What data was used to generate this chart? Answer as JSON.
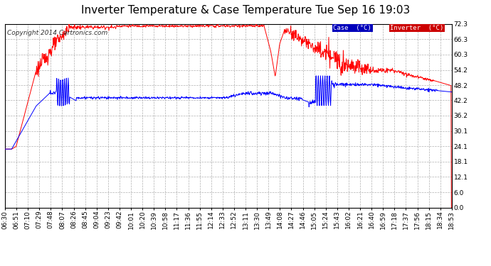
{
  "title": "Inverter Temperature & Case Temperature Tue Sep 16 19:03",
  "copyright": "Copyright 2014 Cartronics.com",
  "legend_case_label": "Case  (°C)",
  "legend_inverter_label": "Inverter  (°C)",
  "case_color": "#0000ff",
  "inverter_color": "#ff0000",
  "case_legend_bg": "#0000bb",
  "inverter_legend_bg": "#cc0000",
  "background_color": "#ffffff",
  "plot_bg_color": "#ffffff",
  "grid_color": "#b0b0b0",
  "ylim": [
    0.0,
    72.3
  ],
  "yticks": [
    0.0,
    6.0,
    12.1,
    18.1,
    24.1,
    30.1,
    36.2,
    42.2,
    48.2,
    54.2,
    60.3,
    66.3,
    72.3
  ],
  "ytick_labels": [
    "0.0",
    "6.0",
    "12.1",
    "18.1",
    "24.1",
    "30.1",
    "36.2",
    "42.2",
    "48.2",
    "54.2",
    "60.3",
    "66.3",
    "72.3"
  ],
  "xtick_labels": [
    "06:30",
    "06:51",
    "07:10",
    "07:29",
    "07:48",
    "08:07",
    "08:26",
    "08:45",
    "09:04",
    "09:23",
    "09:42",
    "10:01",
    "10:20",
    "10:39",
    "10:58",
    "11:17",
    "11:36",
    "11:55",
    "12:14",
    "12:33",
    "12:52",
    "13:11",
    "13:30",
    "13:49",
    "14:08",
    "14:27",
    "14:46",
    "15:05",
    "15:24",
    "15:43",
    "16:02",
    "16:21",
    "16:40",
    "16:59",
    "17:18",
    "17:37",
    "17:56",
    "18:15",
    "18:34",
    "18:53"
  ],
  "title_fontsize": 11,
  "axis_fontsize": 6.5,
  "copyright_fontsize": 6.5,
  "figwidth": 6.9,
  "figheight": 3.75,
  "dpi": 100
}
